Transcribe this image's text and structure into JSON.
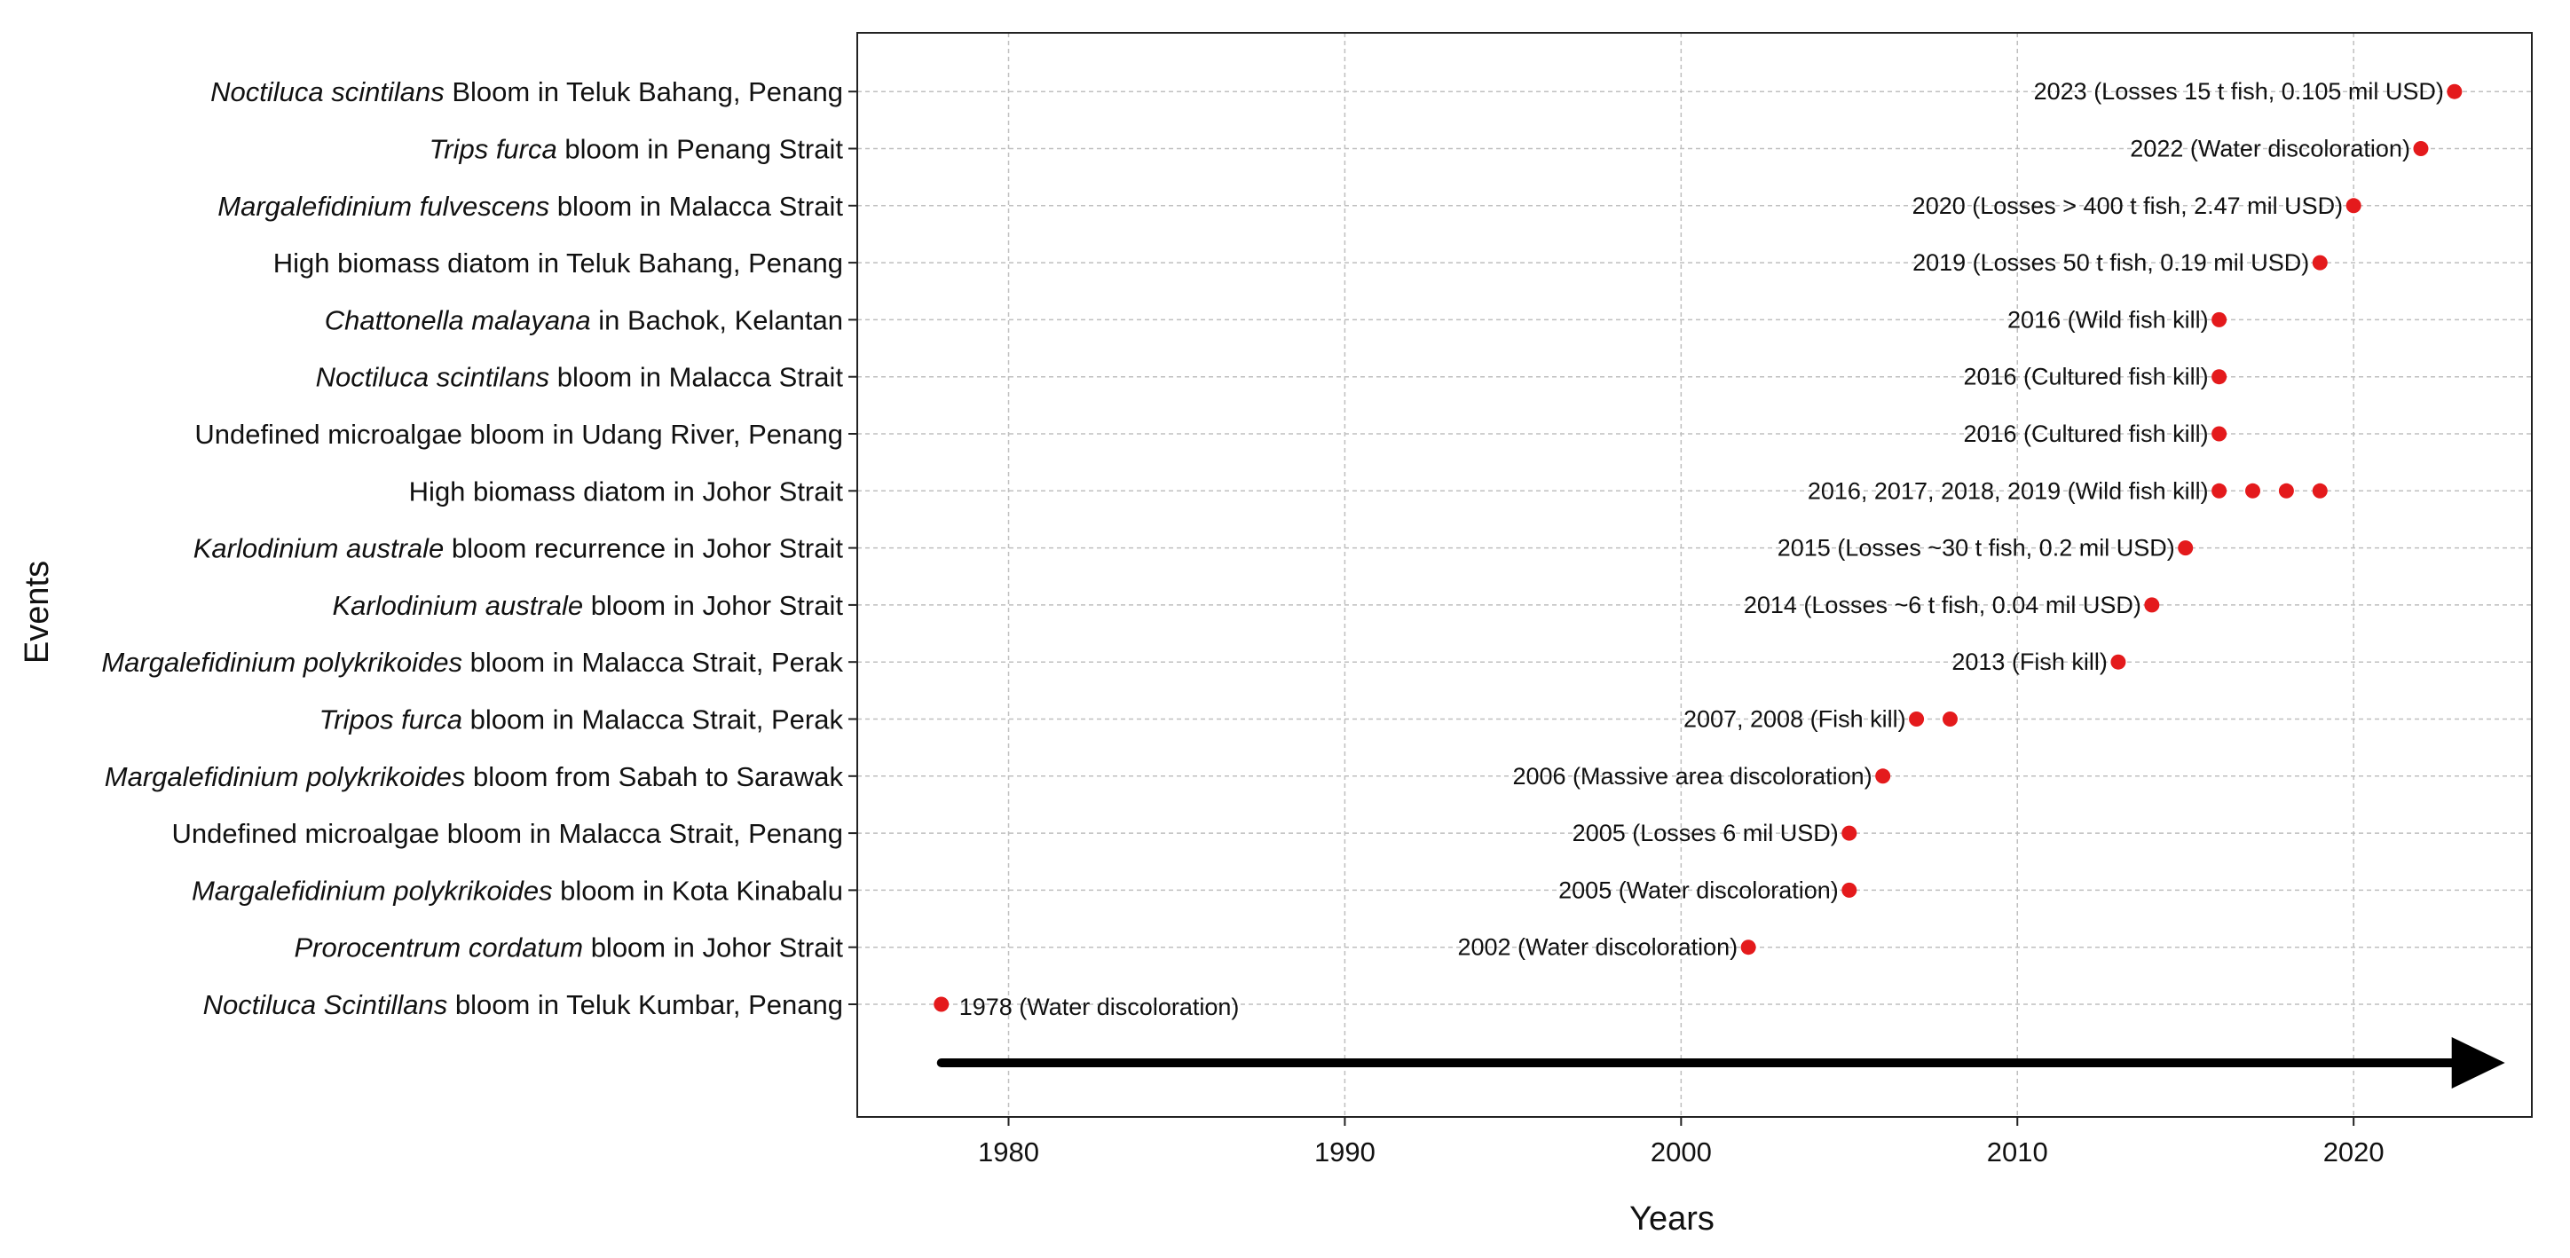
{
  "chart_data": {
    "type": "scatter",
    "xlabel": "Years",
    "ylabel": "Events",
    "xlim": [
      1975.5,
      2025.3
    ],
    "xticks": [
      1980,
      1990,
      2000,
      2010,
      2020
    ],
    "grid": true,
    "point_color": "#e41a1c",
    "events": [
      {
        "parts": [
          {
            "t": "Noctiluca Scintillans",
            "i": true
          },
          {
            "t": " bloom in Teluk Kumbar, Penang",
            "i": false
          }
        ],
        "years": [
          1978
        ],
        "label": "1978 (Water discoloration)",
        "label_side": "right"
      },
      {
        "parts": [
          {
            "t": "Prorocentrum cordatum",
            "i": true
          },
          {
            "t": " bloom in Johor Strait",
            "i": false
          }
        ],
        "years": [
          2002
        ],
        "label": "2002 (Water discoloration)",
        "label_side": "left"
      },
      {
        "parts": [
          {
            "t": "Margalefidinium polykrikoides",
            "i": true
          },
          {
            "t": " bloom in Kota Kinabalu",
            "i": false
          }
        ],
        "years": [
          2005
        ],
        "label": "2005 (Water discoloration)",
        "label_side": "left"
      },
      {
        "parts": [
          {
            "t": "Undefined microalgae bloom in Malacca Strait, Penang",
            "i": false
          }
        ],
        "years": [
          2005
        ],
        "label": "2005 (Losses 6 mil USD)",
        "label_side": "left"
      },
      {
        "parts": [
          {
            "t": "Margalefidinium polykrikoides",
            "i": true
          },
          {
            "t": " bloom from Sabah to Sarawak",
            "i": false
          }
        ],
        "years": [
          2006
        ],
        "label": "2006 (Massive area discoloration)",
        "label_side": "left"
      },
      {
        "parts": [
          {
            "t": "Tripos furca",
            "i": true
          },
          {
            "t": " bloom in Malacca Strait, Perak",
            "i": false
          }
        ],
        "years": [
          2007,
          2008
        ],
        "label": "2007, 2008 (Fish kill)",
        "label_side": "left"
      },
      {
        "parts": [
          {
            "t": "Margalefidinium polykrikoides",
            "i": true
          },
          {
            "t": " bloom in Malacca Strait, Perak",
            "i": false
          }
        ],
        "years": [
          2013
        ],
        "label": "2013 (Fish kill)",
        "label_side": "left"
      },
      {
        "parts": [
          {
            "t": "Karlodinium australe",
            "i": true
          },
          {
            "t": " bloom in Johor Strait",
            "i": false
          }
        ],
        "years": [
          2014
        ],
        "label": "2014 (Losses ~6 t fish, 0.04 mil USD)",
        "label_side": "left"
      },
      {
        "parts": [
          {
            "t": "Karlodinium australe",
            "i": true
          },
          {
            "t": " bloom recurrence in Johor Strait",
            "i": false
          }
        ],
        "years": [
          2015
        ],
        "label": "2015 (Losses ~30 t fish, 0.2 mil USD)",
        "label_side": "left"
      },
      {
        "parts": [
          {
            "t": "High biomass diatom in Johor Strait",
            "i": false
          }
        ],
        "years": [
          2016,
          2017,
          2018,
          2019
        ],
        "label": "2016, 2017, 2018, 2019 (Wild fish kill)",
        "label_side": "left"
      },
      {
        "parts": [
          {
            "t": "Undefined microalgae bloom in Udang River, Penang",
            "i": false
          }
        ],
        "years": [
          2016
        ],
        "label": "2016 (Cultured fish kill)",
        "label_side": "left"
      },
      {
        "parts": [
          {
            "t": "Noctiluca scintilans",
            "i": true
          },
          {
            "t": " bloom in Malacca Strait",
            "i": false
          }
        ],
        "years": [
          2016
        ],
        "label": "2016 (Cultured fish kill)",
        "label_side": "left"
      },
      {
        "parts": [
          {
            "t": "Chattonella malayana",
            "i": true
          },
          {
            "t": " in Bachok, Kelantan",
            "i": false
          }
        ],
        "years": [
          2016
        ],
        "label": "2016 (Wild fish kill)",
        "label_side": "left"
      },
      {
        "parts": [
          {
            "t": "High biomass diatom in Teluk Bahang, Penang",
            "i": false
          }
        ],
        "years": [
          2019
        ],
        "label": "2019 (Losses 50 t fish, 0.19 mil USD)",
        "label_side": "left"
      },
      {
        "parts": [
          {
            "t": "Margalefidinium fulvescens",
            "i": true
          },
          {
            "t": " bloom in Malacca Strait",
            "i": false
          }
        ],
        "years": [
          2020
        ],
        "label": "2020 (Losses > 400 t fish, 2.47 mil USD)",
        "label_side": "left"
      },
      {
        "parts": [
          {
            "t": "Trips furca",
            "i": true
          },
          {
            "t": " bloom in Penang Strait",
            "i": false
          }
        ],
        "years": [
          2022
        ],
        "label": "2022 (Water discoloration)",
        "label_side": "left"
      },
      {
        "parts": [
          {
            "t": "Noctiluca scintilans",
            "i": true
          },
          {
            "t": " Bloom in Teluk Bahang, Penang",
            "i": false
          }
        ],
        "years": [
          2023
        ],
        "label": "2023 (Losses 15 t fish, 0.105 mil USD)",
        "label_side": "left"
      }
    ],
    "arrow": {
      "from_year": 1978,
      "to_year": 2024.5
    }
  }
}
